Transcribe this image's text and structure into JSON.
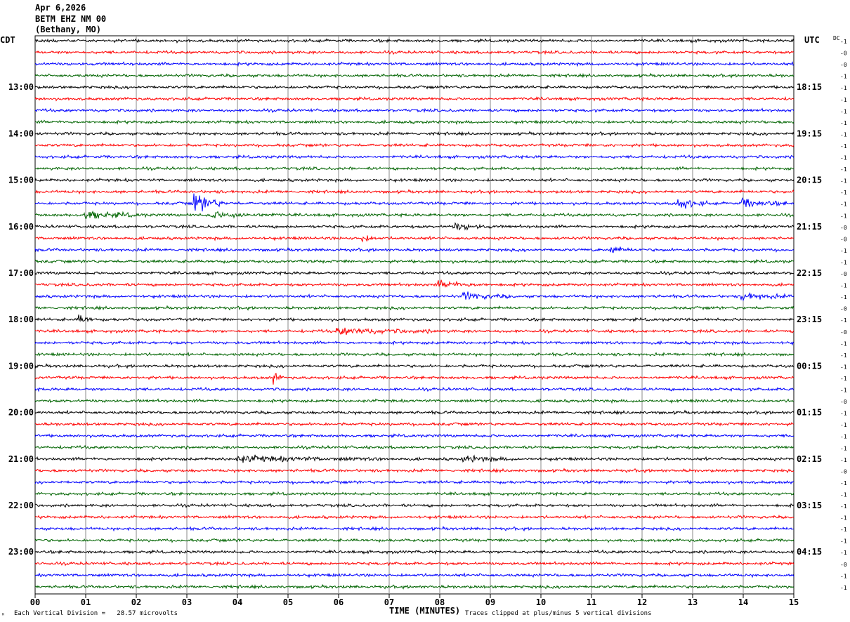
{
  "header": {
    "date": "Apr 6,2026",
    "station": "BETM EHZ NM 00",
    "location": "(Bethany, MO)"
  },
  "chart_data": {
    "type": "line",
    "title": "Apr 6,2026 BETM EHZ NM 00 (Bethany, MO)",
    "xlabel": "TIME (MINUTES)",
    "left_label": "CDT",
    "right_label": "UTC",
    "dc_label": "DC",
    "xlim": [
      0,
      15
    ],
    "x_ticks": [
      "00",
      "01",
      "02",
      "03",
      "04",
      "05",
      "06",
      "07",
      "08",
      "09",
      "10",
      "11",
      "12",
      "13",
      "14",
      "15"
    ],
    "left_hour_labels": [
      "13:00",
      "14:00",
      "15:00",
      "16:00",
      "17:00",
      "18:00",
      "19:00",
      "20:00",
      "21:00",
      "22:00",
      "23:00"
    ],
    "right_hour_labels": [
      "18:15",
      "19:15",
      "20:15",
      "21:15",
      "22:15",
      "23:15",
      "00:15",
      "01:15",
      "02:15",
      "03:15",
      "04:15"
    ],
    "trace_colors": [
      "#000000",
      "#ff0000",
      "#0000ff",
      "#006400"
    ],
    "trace_count": 48,
    "dc_values": [
      "-1",
      "-0",
      "-0",
      "-1",
      "-1",
      "-1",
      "-1",
      "-1",
      "-1",
      "-1",
      "-1",
      "-1",
      "-1",
      "-1",
      "-1",
      "-1",
      "-0",
      "-0",
      "-1",
      "-1",
      "-0",
      "-1",
      "-1",
      "-0",
      "-1",
      "-0",
      "-1",
      "-1",
      "-1",
      "-1",
      "-1",
      "-0",
      "-1",
      "-1",
      "-1",
      "-1",
      "-1",
      "-0",
      "-1",
      "-1",
      "-1",
      "-1",
      "-1",
      "-1",
      "-1",
      "-0",
      "-1",
      "-1"
    ],
    "events": [
      {
        "trace": 14,
        "minute": 3.15,
        "amp": 11,
        "dur": 0.6,
        "color": "#0000ff"
      },
      {
        "trace": 14,
        "minute": 12.7,
        "amp": 6,
        "dur": 0.6
      },
      {
        "trace": 14,
        "minute": 14.0,
        "amp": 4,
        "dur": 0.9
      },
      {
        "trace": 15,
        "minute": 1.0,
        "amp": 4,
        "dur": 1.2
      },
      {
        "trace": 15,
        "minute": 3.5,
        "amp": 3,
        "dur": 1.3
      },
      {
        "trace": 16,
        "minute": 8.3,
        "amp": 3,
        "dur": 0.8
      },
      {
        "trace": 17,
        "minute": 6.5,
        "amp": 3,
        "dur": 0.3
      },
      {
        "trace": 18,
        "minute": 11.4,
        "amp": 3,
        "dur": 0.4
      },
      {
        "trace": 21,
        "minute": 8.0,
        "amp": 3,
        "dur": 1.0
      },
      {
        "trace": 22,
        "minute": 8.5,
        "amp": 3,
        "dur": 1.0
      },
      {
        "trace": 22,
        "minute": 14.0,
        "amp": 3,
        "dur": 1.0
      },
      {
        "trace": 24,
        "minute": 0.9,
        "amp": 4,
        "dur": 0.3
      },
      {
        "trace": 25,
        "minute": 6.0,
        "amp": 3,
        "dur": 2.0
      },
      {
        "trace": 29,
        "minute": 4.75,
        "amp": 5,
        "dur": 0.15
      },
      {
        "trace": 36,
        "minute": 4.0,
        "amp": 2.5,
        "dur": 3.0
      },
      {
        "trace": 36,
        "minute": 8.5,
        "amp": 2.5,
        "dur": 1.0
      }
    ],
    "noise_level": 1.3
  },
  "footer": {
    "scale_note": "Each Vertical Division =   28.57 microvolts",
    "clip_note": "Traces clipped at plus/minus 5 vertical divisions",
    "corner_mark": "ᴹ"
  }
}
